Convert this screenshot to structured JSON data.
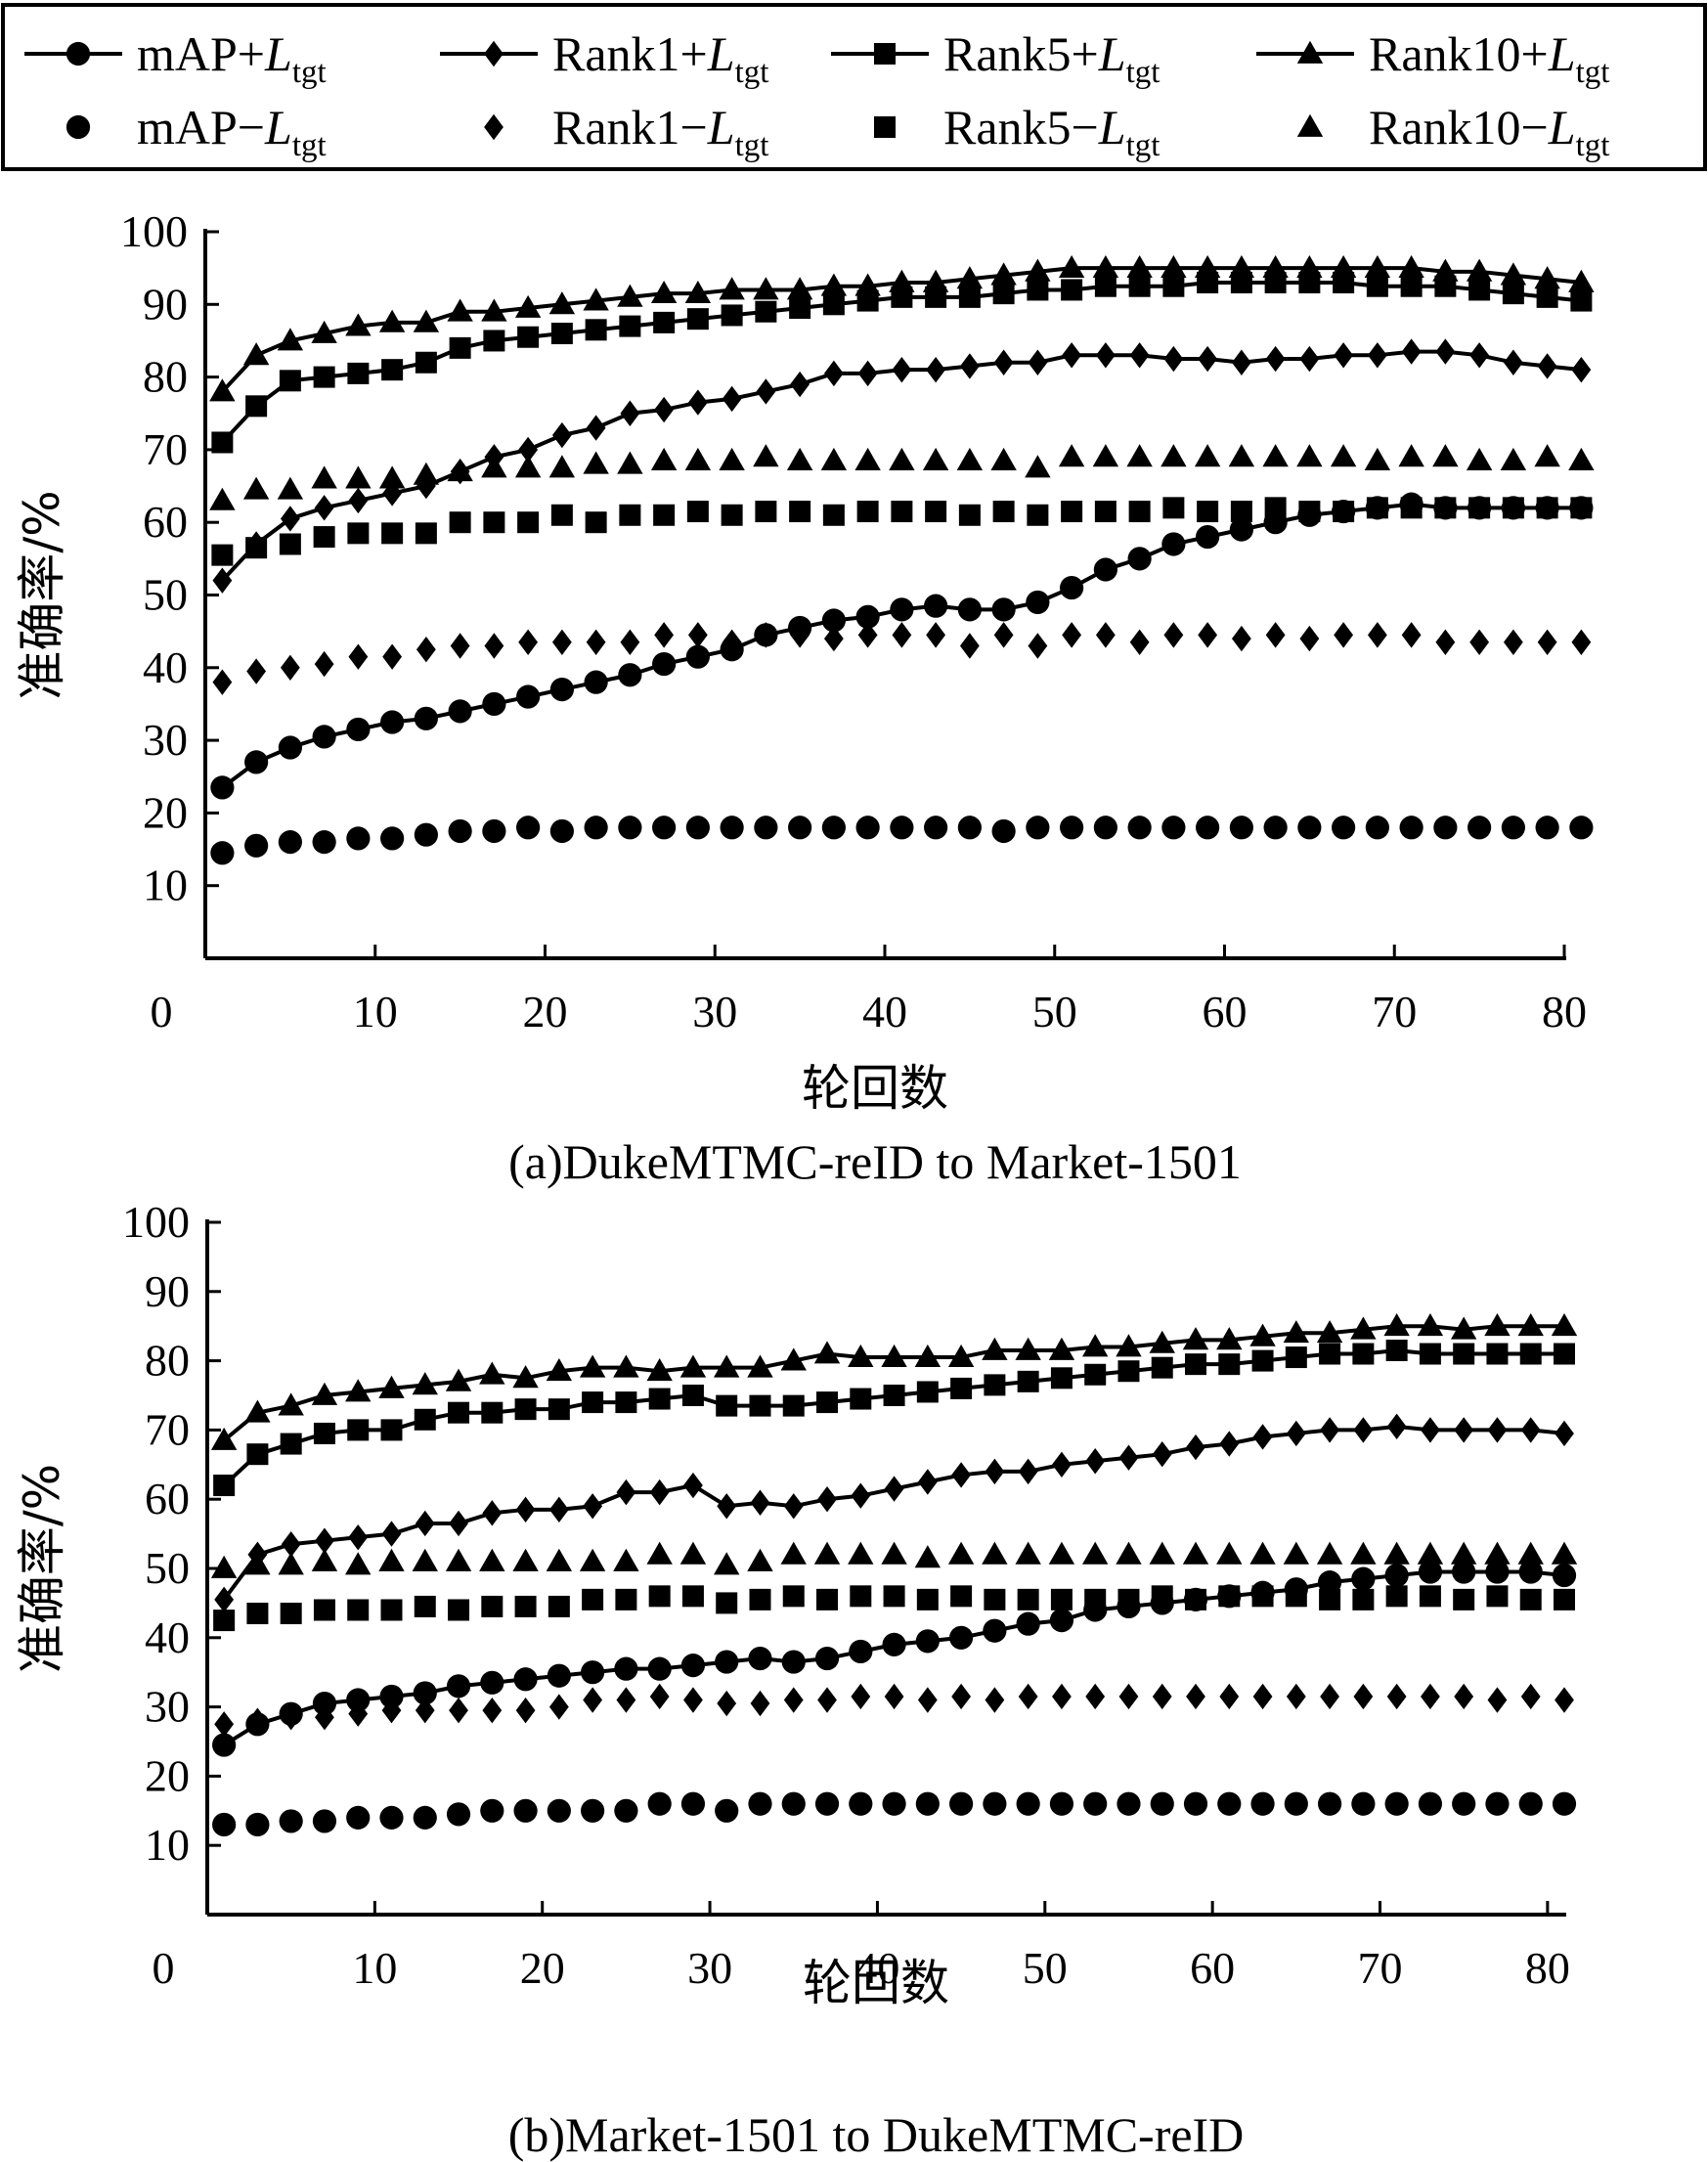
{
  "legend": {
    "items": [
      {
        "prefix": "mAP+",
        "letter": "L",
        "sub": "tgt",
        "marker": "circle",
        "line": true
      },
      {
        "prefix": "Rank1+",
        "letter": "L",
        "sub": "tgt",
        "marker": "diamond",
        "line": true
      },
      {
        "prefix": "Rank5+",
        "letter": "L",
        "sub": "tgt",
        "marker": "square",
        "line": true
      },
      {
        "prefix": "Rank10+",
        "letter": "L",
        "sub": "tgt",
        "marker": "triangle",
        "line": true
      },
      {
        "prefix": "mAP−",
        "letter": "L",
        "sub": "tgt",
        "marker": "circle",
        "line": false
      },
      {
        "prefix": "Rank1−",
        "letter": "L",
        "sub": "tgt",
        "marker": "diamond",
        "line": false
      },
      {
        "prefix": "Rank5−",
        "letter": "L",
        "sub": "tgt",
        "marker": "square",
        "line": false
      },
      {
        "prefix": "Rank10−",
        "letter": "L",
        "sub": "tgt",
        "marker": "triangle",
        "line": false
      }
    ]
  },
  "chart_data": [
    {
      "type": "line",
      "title": "(a)DukeMTMC-reID to Market-1501",
      "xlabel": "轮回数",
      "ylabel": "准确率/%",
      "xlim": [
        0,
        80
      ],
      "ylim": [
        0,
        100
      ],
      "xticks": [
        0,
        10,
        20,
        30,
        40,
        50,
        60,
        70,
        80
      ],
      "yticks": [
        10,
        20,
        30,
        40,
        50,
        60,
        70,
        80,
        90,
        100
      ],
      "grid": false,
      "legend_position": "top",
      "x": [
        1,
        3,
        5,
        7,
        9,
        11,
        13,
        15,
        17,
        19,
        21,
        23,
        25,
        27,
        29,
        31,
        33,
        35,
        37,
        39,
        41,
        43,
        45,
        47,
        49,
        51,
        53,
        55,
        57,
        59,
        61,
        63,
        65,
        67,
        69,
        71,
        73,
        75,
        77,
        79,
        81
      ],
      "series": [
        {
          "name": "mAP+Ltgt",
          "marker": "circle",
          "line": true,
          "values": [
            23.5,
            27,
            29,
            30.5,
            31.5,
            32.5,
            33,
            34,
            35,
            36,
            37,
            38,
            39,
            40.5,
            41.5,
            42.5,
            44.5,
            45.5,
            46.5,
            47,
            48,
            48.5,
            48,
            48,
            49,
            51,
            53.5,
            55,
            57,
            58,
            59,
            60,
            61,
            61.5,
            62,
            62.5,
            62,
            62,
            62,
            62,
            62
          ]
        },
        {
          "name": "Rank1+Ltgt",
          "marker": "diamond",
          "line": true,
          "values": [
            52,
            57,
            60.5,
            62,
            63,
            64,
            65,
            67,
            69,
            70,
            72,
            73,
            75,
            75.5,
            76.5,
            77,
            78,
            79,
            80.5,
            80.5,
            81,
            81,
            81.5,
            82,
            82,
            83,
            83,
            83,
            82.5,
            82.5,
            82,
            82.5,
            82.5,
            83,
            83,
            83.5,
            83.5,
            83,
            82,
            81.5,
            81
          ]
        },
        {
          "name": "Rank5+Ltgt",
          "marker": "square",
          "line": true,
          "values": [
            71,
            76,
            79.5,
            80,
            80.5,
            81,
            82,
            84,
            85,
            85.5,
            86,
            86.5,
            87,
            87.5,
            88,
            88.5,
            89,
            89.5,
            90,
            90.5,
            91,
            91,
            91,
            91.5,
            92,
            92,
            92.5,
            92.5,
            92.5,
            93,
            93,
            93,
            93,
            93,
            92.5,
            92.5,
            92.5,
            92,
            91.5,
            91,
            90.5
          ]
        },
        {
          "name": "Rank10+Ltgt",
          "marker": "triangle",
          "line": true,
          "values": [
            78,
            83,
            85,
            86,
            87,
            87.5,
            87.5,
            89,
            89,
            89.5,
            90,
            90.5,
            91,
            91.5,
            91.5,
            92,
            92,
            92,
            92.5,
            92.5,
            93,
            93,
            93.5,
            94,
            94.5,
            95,
            95,
            95,
            95,
            95,
            95,
            95,
            95,
            95,
            95,
            95,
            94.5,
            94.5,
            94,
            93.5,
            93
          ]
        },
        {
          "name": "mAP-Ltgt",
          "marker": "circle",
          "line": false,
          "values": [
            14.5,
            15.5,
            16,
            16,
            16.5,
            16.5,
            17,
            17.5,
            17.5,
            18,
            17.5,
            18,
            18,
            18,
            18,
            18,
            18,
            18,
            18,
            18,
            18,
            18,
            18,
            17.5,
            18,
            18,
            18,
            18,
            18,
            18,
            18,
            18,
            18,
            18,
            18,
            18,
            18,
            18,
            18,
            18,
            18
          ]
        },
        {
          "name": "Rank1-Ltgt",
          "marker": "diamond",
          "line": false,
          "values": [
            38,
            39.5,
            40,
            40.5,
            41.5,
            41.5,
            42.5,
            43,
            43,
            43.5,
            43.5,
            43.5,
            43.5,
            44.5,
            44.5,
            43.5,
            44.5,
            44.5,
            44,
            44.5,
            44.5,
            44.5,
            43,
            44.5,
            43,
            44.5,
            44.5,
            43.5,
            44.5,
            44.5,
            44,
            44.5,
            44,
            44.5,
            44.5,
            44.5,
            43.5,
            43.5,
            43.5,
            43.5,
            43.5
          ]
        },
        {
          "name": "Rank5-Ltgt",
          "marker": "square",
          "line": false,
          "values": [
            55.5,
            56.5,
            57,
            58,
            58.5,
            58.5,
            58.5,
            60,
            60,
            60,
            61,
            60,
            61,
            61,
            61.5,
            61,
            61.5,
            61.5,
            61,
            61.5,
            61.5,
            61.5,
            61,
            61.5,
            61,
            61.5,
            61.5,
            61.5,
            62,
            61.5,
            61.5,
            62,
            61.5,
            61.5,
            62,
            62,
            62,
            62,
            62,
            62,
            62
          ]
        },
        {
          "name": "Rank10-Ltgt",
          "marker": "triangle",
          "line": false,
          "values": [
            63,
            64.5,
            64.5,
            66,
            66,
            66,
            66.5,
            67,
            67.5,
            67.5,
            67.5,
            68,
            68,
            68.5,
            68.5,
            68.5,
            69,
            68.5,
            68.5,
            68.5,
            68.5,
            68.5,
            68.5,
            68.5,
            67.5,
            69,
            69,
            69,
            69,
            69,
            69,
            69,
            69,
            69,
            68.5,
            69,
            69,
            68.5,
            68.5,
            69,
            68.5
          ]
        }
      ]
    },
    {
      "type": "line",
      "title": "(b)Market-1501 to DukeMTMC-reID",
      "xlabel": "轮回数",
      "ylabel": "准确率/%",
      "xlim": [
        0,
        81
      ],
      "ylim": [
        0,
        100
      ],
      "xticks": [
        0,
        10,
        20,
        30,
        40,
        50,
        60,
        70,
        80
      ],
      "yticks": [
        10,
        20,
        30,
        40,
        50,
        60,
        70,
        80,
        90,
        100
      ],
      "grid": false,
      "x": [
        1,
        3,
        5,
        7,
        9,
        11,
        13,
        15,
        17,
        19,
        21,
        23,
        25,
        27,
        29,
        31,
        33,
        35,
        37,
        39,
        41,
        43,
        45,
        47,
        49,
        51,
        53,
        55,
        57,
        59,
        61,
        63,
        65,
        67,
        69,
        71,
        73,
        75,
        77,
        79,
        81
      ],
      "series": [
        {
          "name": "mAP+Ltgt",
          "marker": "circle",
          "line": true,
          "values": [
            24.5,
            27.5,
            29,
            30.5,
            31,
            31.5,
            32,
            33,
            33.5,
            34,
            34.5,
            35,
            35.5,
            35.5,
            36,
            36.5,
            37,
            36.5,
            37,
            38,
            39,
            39.5,
            40,
            41,
            42,
            42.5,
            44,
            44.5,
            45,
            45.5,
            46,
            46.5,
            47,
            48,
            48.5,
            49,
            49.5,
            49.5,
            49.5,
            49.5,
            49
          ]
        },
        {
          "name": "Rank1+Ltgt",
          "marker": "diamond",
          "line": true,
          "values": [
            45.5,
            52,
            53.5,
            54,
            54.5,
            55,
            56.5,
            56.5,
            58,
            58.5,
            58.5,
            59,
            61,
            61,
            62,
            59,
            59.5,
            59,
            60,
            60.5,
            61.5,
            62.5,
            63.5,
            64,
            64,
            65,
            65.5,
            66,
            66.5,
            67.5,
            68,
            69,
            69.5,
            70,
            70,
            70.5,
            70,
            70,
            70,
            70,
            69.5
          ]
        },
        {
          "name": "Rank5+Ltgt",
          "marker": "square",
          "line": true,
          "values": [
            62,
            66.5,
            68,
            69.5,
            70,
            70,
            71.5,
            72.5,
            72.5,
            73,
            73,
            74,
            74,
            74.5,
            75,
            73.5,
            73.5,
            73.5,
            74,
            74.5,
            75,
            75.5,
            76,
            76.5,
            77,
            77.5,
            78,
            78.5,
            79,
            79.5,
            79.5,
            80,
            80.5,
            81,
            81,
            81.5,
            81,
            81,
            81,
            81,
            81
          ]
        },
        {
          "name": "Rank10+Ltgt",
          "marker": "triangle",
          "line": true,
          "values": [
            68.5,
            72.5,
            73.5,
            75,
            75.5,
            76,
            76.5,
            77,
            78,
            77.5,
            78.5,
            79,
            79,
            78.5,
            79,
            79,
            79,
            80,
            81,
            80.5,
            80.5,
            80.5,
            80.5,
            81.5,
            81.5,
            81.5,
            82,
            82,
            82.5,
            83,
            83,
            83.5,
            84,
            84,
            84.5,
            85,
            85,
            84.5,
            85,
            85,
            85
          ]
        },
        {
          "name": "mAP-Ltgt",
          "marker": "circle",
          "line": false,
          "values": [
            13,
            13,
            13.5,
            13.5,
            14,
            14,
            14,
            14.5,
            15,
            15,
            15,
            15,
            15,
            16,
            16,
            15,
            16,
            16,
            16,
            16,
            16,
            16,
            16,
            16,
            16,
            16,
            16,
            16,
            16,
            16,
            16,
            16,
            16,
            16,
            16,
            16,
            16,
            16,
            16,
            16,
            16
          ]
        },
        {
          "name": "Rank1-Ltgt",
          "marker": "diamond",
          "line": false,
          "values": [
            27.5,
            28,
            28.5,
            28.5,
            29,
            29.5,
            29.5,
            29.5,
            29.5,
            29.5,
            30,
            31,
            31,
            31.5,
            31,
            30.5,
            30.5,
            31,
            31,
            31.5,
            31.5,
            31,
            31.5,
            31,
            31.5,
            31.5,
            31.5,
            31.5,
            31.5,
            31.5,
            31.5,
            31.5,
            31.5,
            31.5,
            31.5,
            31.5,
            31.5,
            31.5,
            31,
            31.5,
            31
          ]
        },
        {
          "name": "Rank5-Ltgt",
          "marker": "square",
          "line": false,
          "values": [
            42.5,
            43.5,
            43.5,
            44,
            44,
            44,
            44.5,
            44,
            44.5,
            44.5,
            44.5,
            45.5,
            45.5,
            46,
            46,
            45,
            45.5,
            46,
            45.5,
            46,
            46,
            45.5,
            46,
            45.5,
            45.5,
            45.5,
            45.5,
            45.5,
            46,
            45.5,
            46,
            46,
            46,
            45.5,
            45.5,
            46,
            46,
            45.5,
            46,
            45.5,
            45.5
          ]
        },
        {
          "name": "Rank10-Ltgt",
          "marker": "triangle",
          "line": false,
          "values": [
            50,
            50.5,
            50.5,
            51,
            50.5,
            51,
            51,
            51,
            51,
            51,
            51,
            51,
            51,
            52,
            52,
            50.5,
            51,
            52,
            52,
            52,
            52,
            51.5,
            52,
            52,
            52,
            52,
            52,
            52,
            52,
            52,
            52,
            52,
            52,
            52,
            52,
            52,
            52,
            52,
            52,
            52,
            52
          ]
        }
      ]
    }
  ]
}
